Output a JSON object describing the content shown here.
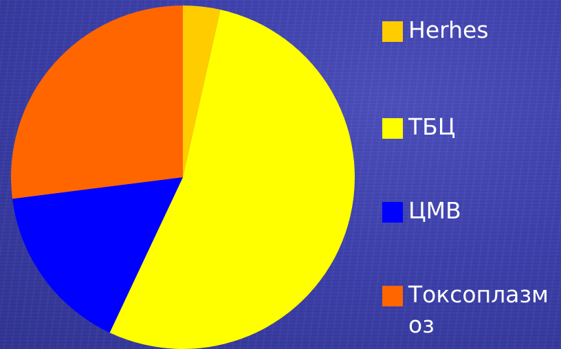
{
  "chart_data": {
    "type": "pie",
    "title": "",
    "slices": [
      {
        "label": "Herhes",
        "value": 3.5,
        "color": "#ffcc00"
      },
      {
        "label": "ТБЦ",
        "value": 53.5,
        "color": "#ffff00"
      },
      {
        "label": "ЦМВ",
        "value": 16,
        "color": "#0000ff"
      },
      {
        "label": "Токсоплазмоз",
        "value": 27,
        "color": "#ff6600"
      }
    ],
    "legend_position": "right"
  }
}
